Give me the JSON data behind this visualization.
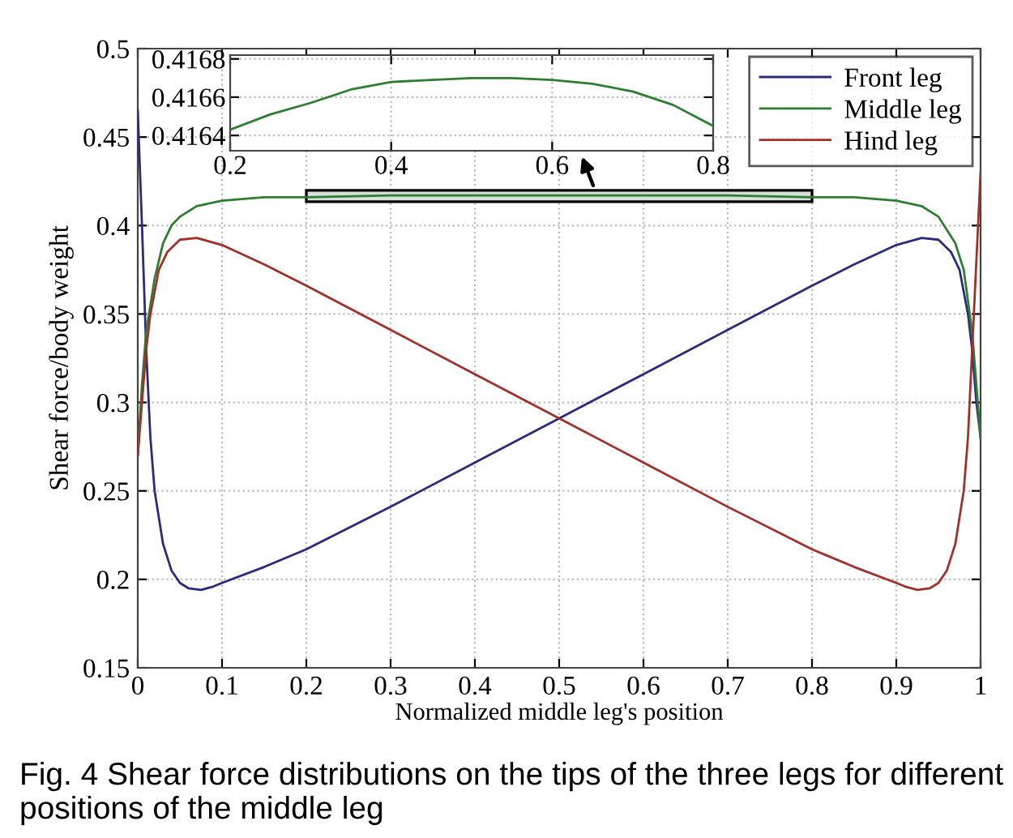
{
  "chart_data": [
    {
      "type": "line",
      "xlabel": "Normalized middle leg's position",
      "ylabel": "Shear force/body weight",
      "xlim": [
        0,
        1
      ],
      "ylim": [
        0.15,
        0.5
      ],
      "xticks": [
        0,
        0.1,
        0.2,
        0.3,
        0.4,
        0.5,
        0.6,
        0.7,
        0.8,
        0.9,
        1
      ],
      "yticks": [
        0.15,
        0.2,
        0.25,
        0.3,
        0.35,
        0.4,
        0.45,
        0.5
      ],
      "grid": true,
      "legend": "top right",
      "series": [
        {
          "name": "Front leg",
          "color": "#2b2b7a",
          "x": [
            0,
            0.005,
            0.01,
            0.015,
            0.02,
            0.03,
            0.04,
            0.05,
            0.06,
            0.075,
            0.09,
            0.1,
            0.15,
            0.2,
            0.3,
            0.4,
            0.5,
            0.6,
            0.7,
            0.8,
            0.85,
            0.9,
            0.93,
            0.95,
            0.965,
            0.975,
            0.985,
            0.99,
            0.995,
            1
          ],
          "values": [
            0.465,
            0.4,
            0.33,
            0.28,
            0.25,
            0.22,
            0.205,
            0.198,
            0.195,
            0.194,
            0.196,
            0.198,
            0.207,
            0.217,
            0.241,
            0.266,
            0.291,
            0.316,
            0.341,
            0.366,
            0.378,
            0.389,
            0.393,
            0.392,
            0.385,
            0.375,
            0.35,
            0.33,
            0.3,
            0.28
          ]
        },
        {
          "name": "Middle leg",
          "color": "#2e7d32",
          "x": [
            0,
            0.005,
            0.01,
            0.02,
            0.03,
            0.04,
            0.05,
            0.07,
            0.1,
            0.15,
            0.2,
            0.3,
            0.4,
            0.5,
            0.6,
            0.7,
            0.8,
            0.85,
            0.9,
            0.93,
            0.95,
            0.97,
            0.98,
            0.99,
            0.995,
            1
          ],
          "values": [
            0.27,
            0.31,
            0.34,
            0.37,
            0.39,
            0.4,
            0.405,
            0.411,
            0.414,
            0.416,
            0.416,
            0.417,
            0.417,
            0.417,
            0.417,
            0.417,
            0.416,
            0.416,
            0.414,
            0.411,
            0.405,
            0.39,
            0.375,
            0.34,
            0.31,
            0.28
          ]
        },
        {
          "name": "Hind leg",
          "color": "#a0302a",
          "x": [
            0,
            0.005,
            0.01,
            0.015,
            0.025,
            0.035,
            0.05,
            0.07,
            0.1,
            0.15,
            0.2,
            0.3,
            0.4,
            0.5,
            0.6,
            0.7,
            0.8,
            0.85,
            0.9,
            0.91,
            0.925,
            0.94,
            0.95,
            0.96,
            0.97,
            0.98,
            0.985,
            0.99,
            0.995,
            1
          ],
          "values": [
            0.27,
            0.3,
            0.33,
            0.35,
            0.375,
            0.385,
            0.392,
            0.393,
            0.389,
            0.378,
            0.366,
            0.341,
            0.316,
            0.291,
            0.266,
            0.241,
            0.217,
            0.207,
            0.198,
            0.196,
            0.194,
            0.195,
            0.198,
            0.205,
            0.22,
            0.25,
            0.28,
            0.33,
            0.38,
            0.43
          ]
        }
      ],
      "annotations": [
        "Fig. 4 Shear force distributions on the tips of the three legs for different positions of the middle leg"
      ]
    },
    {
      "type": "line",
      "xlim": [
        0.2,
        0.8
      ],
      "ylim": [
        0.41632,
        0.41682
      ],
      "xticks": [
        0.2,
        0.4,
        0.6,
        0.8
      ],
      "yticks": [
        0.4164,
        0.4166,
        0.4168
      ],
      "grid": true,
      "series": [
        {
          "color": "#2e7d32",
          "x": [
            0.2,
            0.25,
            0.3,
            0.35,
            0.4,
            0.45,
            0.5,
            0.55,
            0.6,
            0.65,
            0.7,
            0.75,
            0.8
          ],
          "values": [
            0.41643,
            0.41651,
            0.41657,
            0.41664,
            0.41668,
            0.41669,
            0.4167,
            0.4167,
            0.41669,
            0.41667,
            0.41663,
            0.41656,
            0.41645
          ]
        }
      ]
    }
  ]
}
